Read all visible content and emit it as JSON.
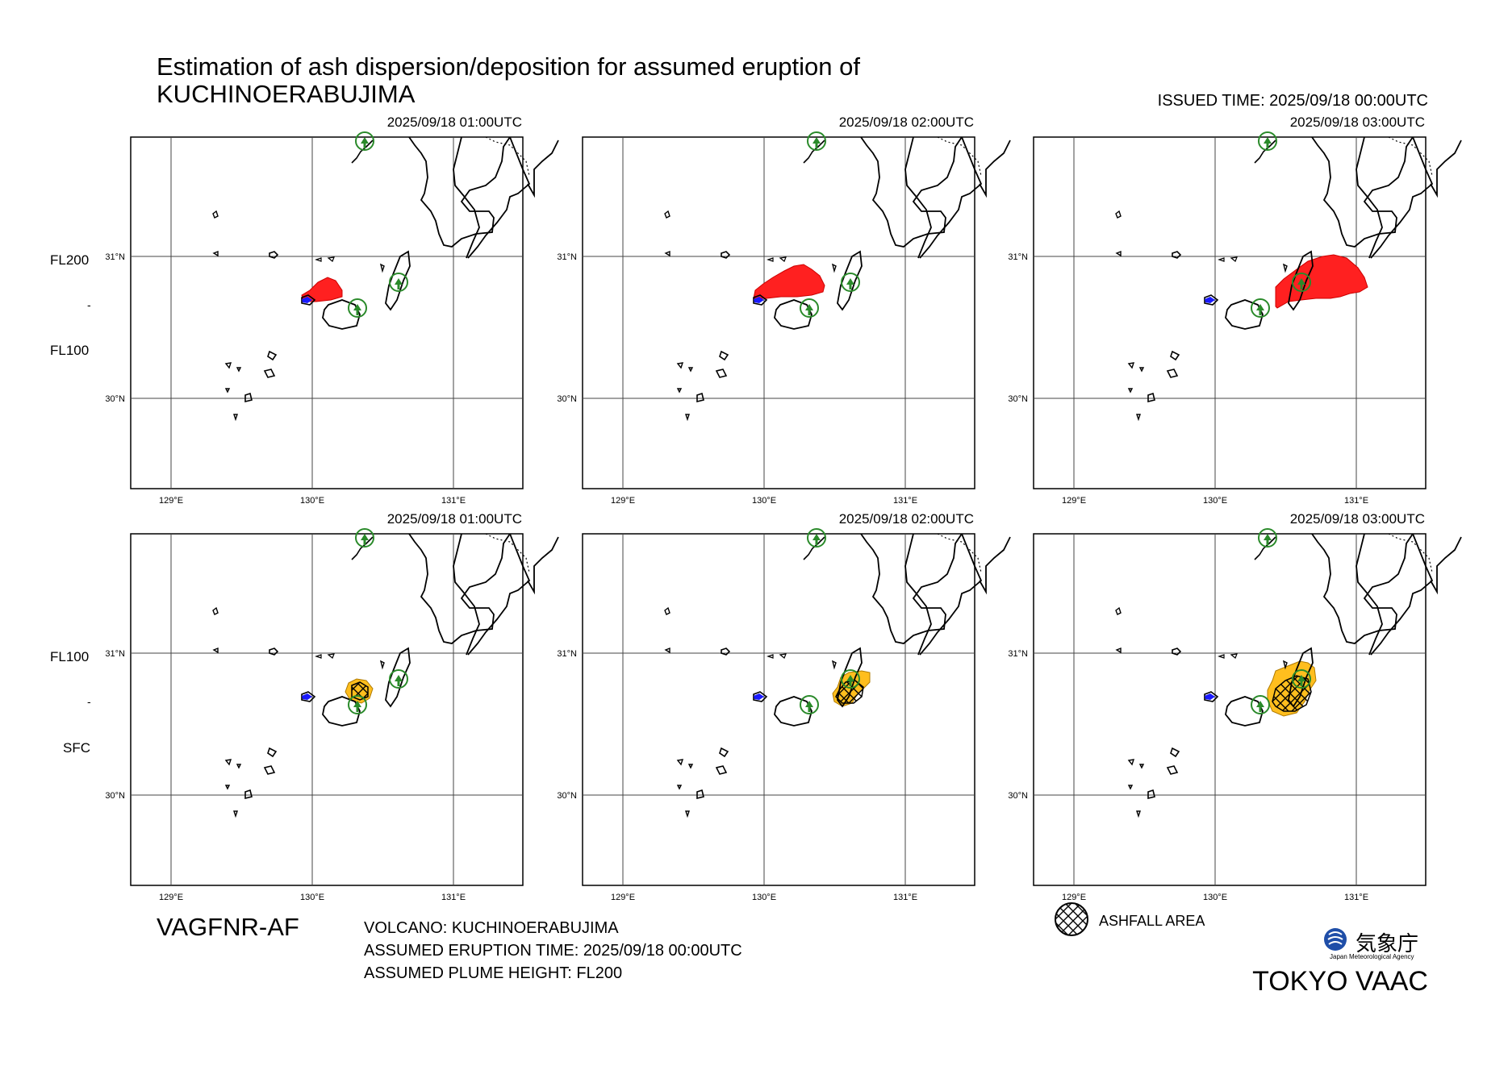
{
  "title_line1": "Estimation of ash dispersion/deposition for assumed eruption of",
  "title_line2": "KUCHINOERABUJIMA",
  "issued_time": "ISSUED TIME: 2025/09/18 00:00UTC",
  "rows": [
    {
      "fl_top": "FL200",
      "fl_sep": "-",
      "fl_bottom": "FL100"
    },
    {
      "fl_top": "FL100",
      "fl_sep": "-",
      "fl_bottom": "SFC"
    }
  ],
  "panel_times": [
    "2025/09/18 01:00UTC",
    "2025/09/18 02:00UTC",
    "2025/09/18 03:00UTC"
  ],
  "lon_labels": [
    "129°E",
    "130°E",
    "131°E"
  ],
  "lat_labels": [
    "31°N",
    "30°N"
  ],
  "product_code": "VAGFNR-AF",
  "volcano": "VOLCANO: KUCHINOERABUJIMA",
  "eruption_time": "ASSUMED ERUPTION TIME: 2025/09/18 00:00UTC",
  "plume_height": "ASSUMED PLUME HEIGHT: FL200",
  "legend_label": "ASHFALL AREA",
  "agency_jp": "気象庁",
  "agency_en": "Japan Meteorological Agency",
  "vaac": "TOKYO VAAC",
  "colors": {
    "ash_cloud": "#ff2020",
    "ashfall": "#ffbe1e",
    "volcano_marker": "#2a8a2a",
    "source": "#1a1aff"
  }
}
